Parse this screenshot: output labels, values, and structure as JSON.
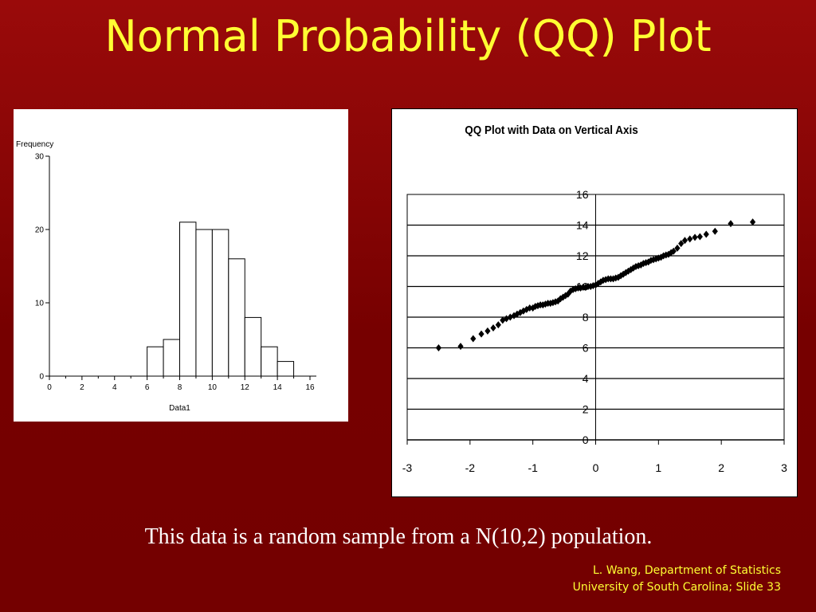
{
  "slide": {
    "title": "Normal Probability (QQ) Plot",
    "caption": "This data is a random sample from a N(10,2) population.",
    "footer_line1": "L. Wang, Department of Statistics",
    "footer_line2": "University of South Carolina; Slide 33"
  },
  "colors": {
    "background": "#7a0000",
    "title": "#ffff33",
    "caption": "#ffffff",
    "footer": "#ffff33"
  },
  "chart_data": [
    {
      "type": "bar",
      "title": "",
      "xlabel": "Data1",
      "ylabel": "Frequency",
      "xlim": [
        0,
        16
      ],
      "ylim": [
        0,
        30
      ],
      "x_ticks": [
        0,
        2,
        4,
        6,
        8,
        10,
        12,
        14,
        16
      ],
      "y_ticks": [
        0,
        10,
        20,
        30
      ],
      "bin_width": 1,
      "bins": [
        {
          "start": 6,
          "end": 7,
          "count": 4
        },
        {
          "start": 7,
          "end": 8,
          "count": 5
        },
        {
          "start": 8,
          "end": 9,
          "count": 21
        },
        {
          "start": 9,
          "end": 10,
          "count": 20
        },
        {
          "start": 10,
          "end": 11,
          "count": 20
        },
        {
          "start": 11,
          "end": 12,
          "count": 16
        },
        {
          "start": 12,
          "end": 13,
          "count": 8
        },
        {
          "start": 13,
          "end": 14,
          "count": 4
        },
        {
          "start": 14,
          "end": 15,
          "count": 2
        }
      ]
    },
    {
      "type": "scatter",
      "title": "QQ Plot with Data on Vertical Axis",
      "xlabel": "",
      "ylabel": "",
      "xlim": [
        -3,
        3
      ],
      "ylim": [
        0,
        16
      ],
      "x_ticks": [
        -3,
        -2,
        -1,
        0,
        1,
        2,
        3
      ],
      "y_ticks": [
        0,
        2,
        4,
        6,
        8,
        10,
        12,
        14,
        16
      ],
      "grid": "horizontal",
      "marker": "diamond",
      "points": [
        [
          -2.5,
          6.0
        ],
        [
          -2.15,
          6.1
        ],
        [
          -1.95,
          6.6
        ],
        [
          -1.82,
          6.9
        ],
        [
          -1.72,
          7.1
        ],
        [
          -1.63,
          7.3
        ],
        [
          -1.55,
          7.5
        ],
        [
          -1.48,
          7.8
        ],
        [
          -1.42,
          7.9
        ],
        [
          -1.36,
          8.0
        ],
        [
          -1.3,
          8.1
        ],
        [
          -1.25,
          8.2
        ],
        [
          -1.2,
          8.3
        ],
        [
          -1.15,
          8.4
        ],
        [
          -1.1,
          8.5
        ],
        [
          -1.05,
          8.6
        ],
        [
          -1.0,
          8.6
        ],
        [
          -0.96,
          8.7
        ],
        [
          -0.92,
          8.75
        ],
        [
          -0.88,
          8.8
        ],
        [
          -0.84,
          8.8
        ],
        [
          -0.8,
          8.85
        ],
        [
          -0.76,
          8.9
        ],
        [
          -0.72,
          8.9
        ],
        [
          -0.68,
          8.95
        ],
        [
          -0.64,
          9.0
        ],
        [
          -0.6,
          9.05
        ],
        [
          -0.56,
          9.2
        ],
        [
          -0.52,
          9.3
        ],
        [
          -0.48,
          9.4
        ],
        [
          -0.44,
          9.5
        ],
        [
          -0.4,
          9.7
        ],
        [
          -0.36,
          9.8
        ],
        [
          -0.32,
          9.85
        ],
        [
          -0.28,
          9.9
        ],
        [
          -0.24,
          9.9
        ],
        [
          -0.2,
          9.95
        ],
        [
          -0.16,
          9.95
        ],
        [
          -0.12,
          10.0
        ],
        [
          -0.08,
          10.0
        ],
        [
          -0.04,
          10.05
        ],
        [
          0.0,
          10.1
        ],
        [
          0.04,
          10.2
        ],
        [
          0.08,
          10.3
        ],
        [
          0.12,
          10.4
        ],
        [
          0.16,
          10.45
        ],
        [
          0.2,
          10.5
        ],
        [
          0.24,
          10.5
        ],
        [
          0.28,
          10.5
        ],
        [
          0.32,
          10.55
        ],
        [
          0.36,
          10.6
        ],
        [
          0.4,
          10.7
        ],
        [
          0.44,
          10.8
        ],
        [
          0.48,
          10.9
        ],
        [
          0.52,
          11.0
        ],
        [
          0.56,
          11.1
        ],
        [
          0.6,
          11.2
        ],
        [
          0.64,
          11.3
        ],
        [
          0.68,
          11.35
        ],
        [
          0.72,
          11.4
        ],
        [
          0.76,
          11.5
        ],
        [
          0.8,
          11.55
        ],
        [
          0.84,
          11.6
        ],
        [
          0.88,
          11.7
        ],
        [
          0.92,
          11.75
        ],
        [
          0.96,
          11.8
        ],
        [
          1.0,
          11.85
        ],
        [
          1.04,
          11.9
        ],
        [
          1.08,
          12.0
        ],
        [
          1.12,
          12.05
        ],
        [
          1.16,
          12.1
        ],
        [
          1.2,
          12.2
        ],
        [
          1.24,
          12.3
        ],
        [
          1.3,
          12.5
        ],
        [
          1.36,
          12.8
        ],
        [
          1.42,
          13.0
        ],
        [
          1.5,
          13.1
        ],
        [
          1.58,
          13.2
        ],
        [
          1.66,
          13.25
        ],
        [
          1.76,
          13.4
        ],
        [
          1.9,
          13.6
        ],
        [
          2.15,
          14.1
        ],
        [
          2.5,
          14.2
        ]
      ]
    }
  ]
}
